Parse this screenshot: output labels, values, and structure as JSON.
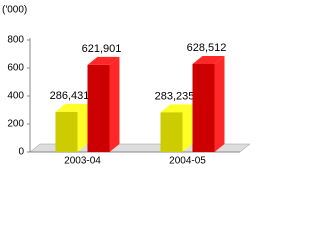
{
  "chart_data": {
    "type": "bar3d",
    "y_label": "('000)",
    "categories": [
      "2003-04",
      "2004-05"
    ],
    "series": [
      {
        "color": "#cccc00",
        "values": [
          286.431,
          283.235
        ],
        "value_labels": [
          "286,431",
          "283,235"
        ]
      },
      {
        "color": "#cc0000",
        "values": [
          621.901,
          628.512
        ],
        "value_labels": [
          "621,901",
          "628,512"
        ]
      }
    ],
    "ylim": [
      0,
      800
    ],
    "yticks": [
      0,
      200,
      400,
      600,
      800
    ]
  }
}
